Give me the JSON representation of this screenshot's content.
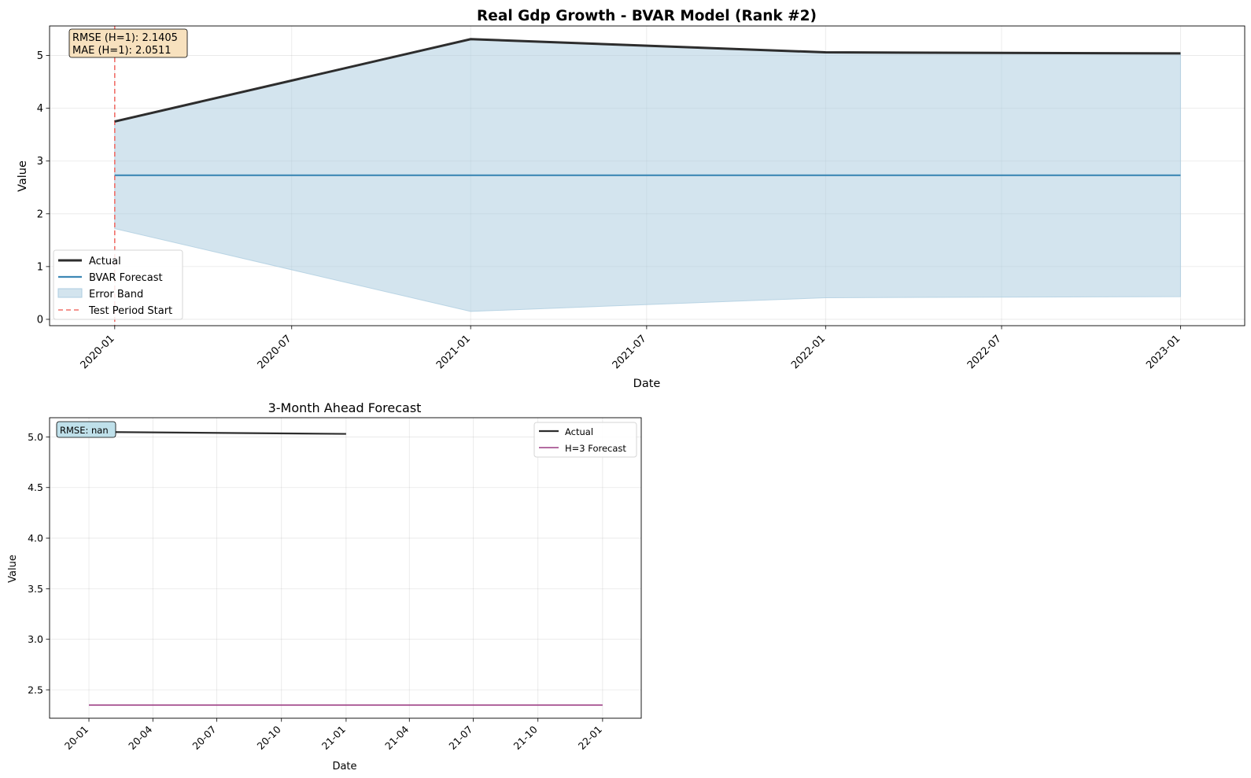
{
  "chart_data": [
    {
      "type": "line",
      "title": "Real Gdp Growth - BVAR Model (Rank #2)",
      "xlabel": "Date",
      "ylabel": "Value",
      "x_ticks": [
        "2020-01",
        "2020-07",
        "2021-01",
        "2021-07",
        "2022-01",
        "2022-07",
        "2023-01"
      ],
      "y_ticks": [
        0,
        1,
        2,
        3,
        4,
        5
      ],
      "xlim": [
        "2019-10-26",
        "2023-03-08"
      ],
      "ylim": [
        -0.12,
        5.56
      ],
      "grid": true,
      "legend_position": "lower-left",
      "series": [
        {
          "name": "Actual",
          "color": "#2d2d2d",
          "x": [
            "2020-01-01",
            "2021-01-01",
            "2022-01-01",
            "2023-01-01"
          ],
          "y": [
            3.75,
            5.31,
            5.06,
            5.04
          ]
        },
        {
          "name": "BVAR Forecast",
          "color": "#3d88b5",
          "x": [
            "2020-01-01",
            "2021-01-01",
            "2022-01-01",
            "2023-01-01"
          ],
          "y": [
            2.73,
            2.73,
            2.73,
            2.73
          ]
        },
        {
          "name": "Error Band",
          "color": "#aecde0",
          "x": [
            "2020-01-01",
            "2021-01-01",
            "2022-01-01",
            "2023-01-01"
          ],
          "lower": [
            1.72,
            0.15,
            0.41,
            0.43
          ],
          "upper": [
            3.75,
            5.31,
            5.06,
            5.04
          ]
        },
        {
          "name": "Test Period Start",
          "color": "#f0706a",
          "style": "dashed",
          "x_vertical": "2020-01-01"
        }
      ],
      "annotation": {
        "lines": [
          "RMSE (H=1): 2.1405",
          "MAE (H=1): 2.0511"
        ],
        "position": "top-left",
        "color": "#f7e1be"
      }
    },
    {
      "type": "line",
      "title": "3-Month Ahead Forecast",
      "xlabel": "Date",
      "ylabel": "Value",
      "x_ticks": [
        "20-01",
        "20-04",
        "20-07",
        "20-10",
        "21-01",
        "21-04",
        "21-07",
        "21-10",
        "22-01"
      ],
      "y_ticks": [
        2.5,
        3.0,
        3.5,
        4.0,
        4.5,
        5.0
      ],
      "xlim": [
        "2019-11-06",
        "2022-02-25"
      ],
      "ylim": [
        2.22,
        5.19
      ],
      "grid": true,
      "legend_position": "top-right",
      "series": [
        {
          "name": "Actual",
          "color": "#2d2d2d",
          "x": [
            "2020-01-01",
            "2021-01-01"
          ],
          "y": [
            5.05,
            5.03
          ]
        },
        {
          "name": "H=3 Forecast",
          "color": "#9b3b82",
          "x": [
            "2020-01-01",
            "2022-01-01"
          ],
          "y": [
            2.35,
            2.35
          ]
        }
      ],
      "annotation": {
        "lines": [
          "RMSE: nan"
        ],
        "position": "top-left",
        "color": "#bfe0ea"
      }
    }
  ]
}
